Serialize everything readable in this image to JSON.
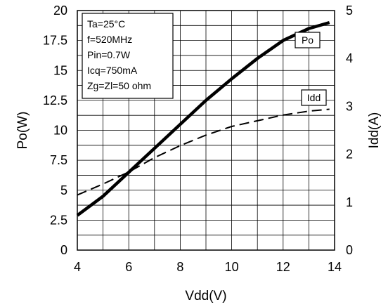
{
  "chart_data": {
    "type": "line",
    "xlabel": "Vdd(V)",
    "ylabel": "Po(W)",
    "y2label": "Idd(A)",
    "xlim": [
      4,
      14
    ],
    "ylim": [
      0,
      20
    ],
    "y2lim": [
      0,
      5
    ],
    "xticks": [
      "4",
      "6",
      "8",
      "10",
      "12",
      "14"
    ],
    "yticks": [
      "0",
      "2.5",
      "5",
      "7.5",
      "10",
      "12.5",
      "15",
      "17.5",
      "20"
    ],
    "y2ticks": [
      "0",
      "1",
      "2",
      "3",
      "4",
      "5"
    ],
    "grid": true,
    "conditions": [
      "Ta=25°C",
      "f=520MHz",
      "Pin=0.7W",
      "Icq=750mA",
      "Zg=Zl=50 ohm"
    ],
    "series": [
      {
        "name": "Po",
        "axis": "left",
        "style": "solid",
        "x": [
          4,
          5,
          6,
          7,
          8,
          9,
          10,
          11,
          12,
          13,
          13.8
        ],
        "y": [
          2.9,
          4.5,
          6.5,
          8.5,
          10.5,
          12.5,
          14.3,
          16.0,
          17.5,
          18.5,
          19.0
        ]
      },
      {
        "name": "Idd",
        "axis": "right",
        "style": "dashed",
        "x": [
          4,
          5,
          6,
          7,
          8,
          9,
          10,
          11,
          12,
          13,
          13.8
        ],
        "y": [
          1.15,
          1.38,
          1.63,
          1.93,
          2.18,
          2.4,
          2.58,
          2.7,
          2.82,
          2.9,
          2.94
        ]
      }
    ]
  }
}
